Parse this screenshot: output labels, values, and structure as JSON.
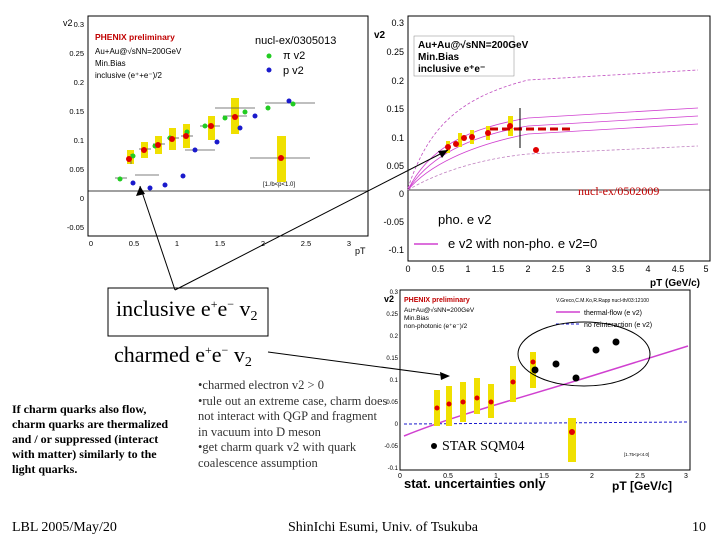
{
  "slide": {
    "inclusive_label_prefix": "inclusive e",
    "inclusive_label_suffix": " v",
    "charmed_label_prefix": "charmed e",
    "charmed_label_suffix": " v",
    "sub2": "2",
    "plus": "+",
    "minus": "−",
    "left_note": "If charm quarks also flow, charm quarks are thermalized and / or suppressed (interact with matter) similarly to the light quarks.",
    "bullets": [
      "charmed electron v2 > 0",
      "rule out an extreme case, charm does not interact with QGP and fragment in vacuum into D meson",
      "get charm quark v2 with quark coalescence assumption"
    ],
    "star_label": "STAR SQM04",
    "nucl_label": "nucl-ex/0502009",
    "footer_left": "LBL 2005/May/20",
    "footer_center": "ShinIchi Esumi, Univ. of Tsukuba",
    "footer_right": "10"
  },
  "colors": {
    "red": "#e00000",
    "green": "#22cc22",
    "blue": "#1a1acc",
    "yellow": "#f0e000",
    "magenta": "#d040d0"
  },
  "plot1": {
    "ylabel": "v2",
    "xlabel": "pT",
    "legend_title": "PHENIX preliminary",
    "legend_system": "Au+Au@√sNN=200GeV",
    "legend_cent": "Min.Bias",
    "legend_inc": "inclusive (e⁺+e⁻)/2",
    "ref": "nucl-ex/0305013",
    "pi_label": "π v2",
    "p_label": "p v2",
    "small_note": "[1./b<p<1.0]",
    "yticks": [
      "0.3",
      "0.25",
      "0.2",
      "0.15",
      "0.1",
      "0.05",
      "0",
      "-0.05"
    ],
    "xticks": [
      "0",
      "0.5",
      "1",
      "1.5",
      "2",
      "2.5",
      "3"
    ]
  },
  "plot2": {
    "ylabel": "v2",
    "xlabel": "pT (GeV/c)",
    "legend_system": "Au+Au@√sNN=200GeV",
    "legend_cent": "Min.Bias",
    "legend_inc": "inclusive e⁺e⁻",
    "pho_label": "pho. e v2",
    "nonpho_label": "e v2 with non-pho. e v2=0",
    "yticks": [
      "0.3",
      "0.25",
      "0.2",
      "0.15",
      "0.1",
      "0.05",
      "0",
      "-0.05",
      "-0.1"
    ],
    "xticks": [
      "0",
      "0.5",
      "1",
      "1.5",
      "2",
      "2.5",
      "3",
      "3.5",
      "4",
      "4.5",
      "5"
    ]
  },
  "plot3": {
    "ylabel": "v2",
    "xlabel": "pT [GeV/c]",
    "legend_title": "PHENIX preliminary",
    "legend_system": "Au+Au@√sNN=200GeV",
    "legend_cent": "Min.Bias",
    "legend_nonpho": "non-photonic (e⁺e⁻)/2",
    "ref": "V.Greco,C.M.Ko,R.Rapp nucl-th/03:12100",
    "thermal_label": "thermal-flow (e v2)",
    "noreint_label": "no reinteraction (e v2)",
    "stat_label": "stat. uncertainties only",
    "yticks": [
      "0.3",
      "0.25",
      "0.2",
      "0.15",
      "0.1",
      "0.05",
      "0",
      "-0.05",
      "-0.1"
    ],
    "xticks": [
      "0",
      "0.5",
      "1",
      "1.5",
      "2",
      "2.5",
      "3"
    ],
    "small_note": "[1.75<p<4.0]"
  }
}
